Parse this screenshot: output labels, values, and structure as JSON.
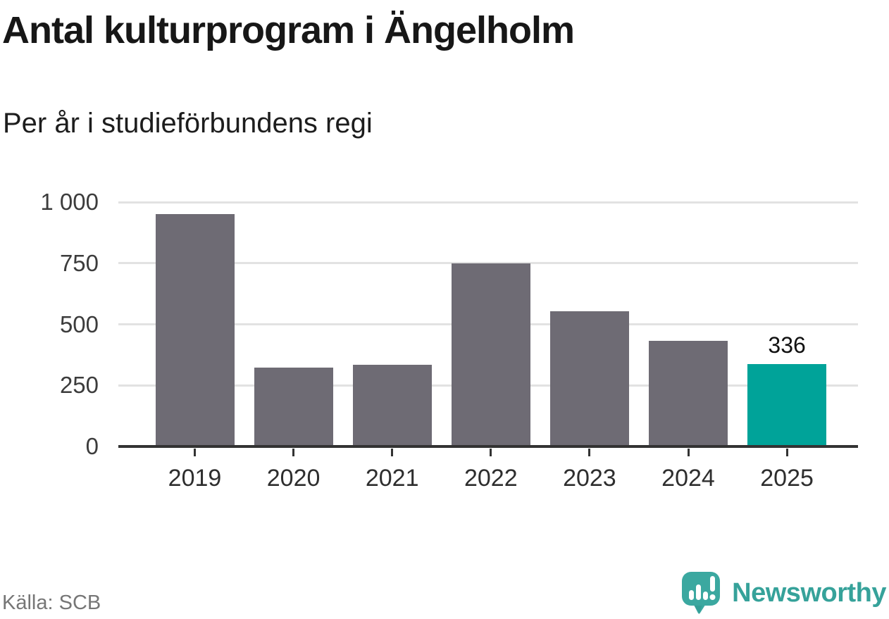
{
  "title": "Antal kulturprogram i Ängelholm",
  "subtitle": "Per år i studieförbundens regi",
  "source": "Källa: SCB",
  "brand": {
    "name": "Newsworthy",
    "icon": "newsworthy-speech-bubble-bar-chart-icon",
    "wordmark_color": "#36A29A",
    "icon_color": "#3BA8A0",
    "icon_shadow_color": "#2F968E"
  },
  "colors": {
    "bar_default": "#6E6B74",
    "bar_highlight": "#00A399",
    "gridline": "#E2E2E2",
    "axis": "#333333",
    "value_label": "#111111"
  },
  "chart_data": {
    "type": "bar",
    "title": "Antal kulturprogram i Ängelholm",
    "subtitle": "Per år i studieförbundens regi",
    "categories": [
      "2019",
      "2020",
      "2021",
      "2022",
      "2023",
      "2024",
      "2025"
    ],
    "values": [
      950,
      323,
      334,
      750,
      553,
      432,
      336
    ],
    "highlight_index": 6,
    "value_labels": [
      null,
      null,
      null,
      null,
      null,
      null,
      "336"
    ],
    "xlabel": "",
    "ylabel": "",
    "ylim": [
      0,
      1000
    ],
    "yticks": [
      0,
      250,
      500,
      750,
      1000
    ],
    "ytick_labels": [
      "0",
      "250",
      "500",
      "750",
      "1 000"
    ],
    "grid": true,
    "legend": false,
    "source": "Källa: SCB"
  }
}
